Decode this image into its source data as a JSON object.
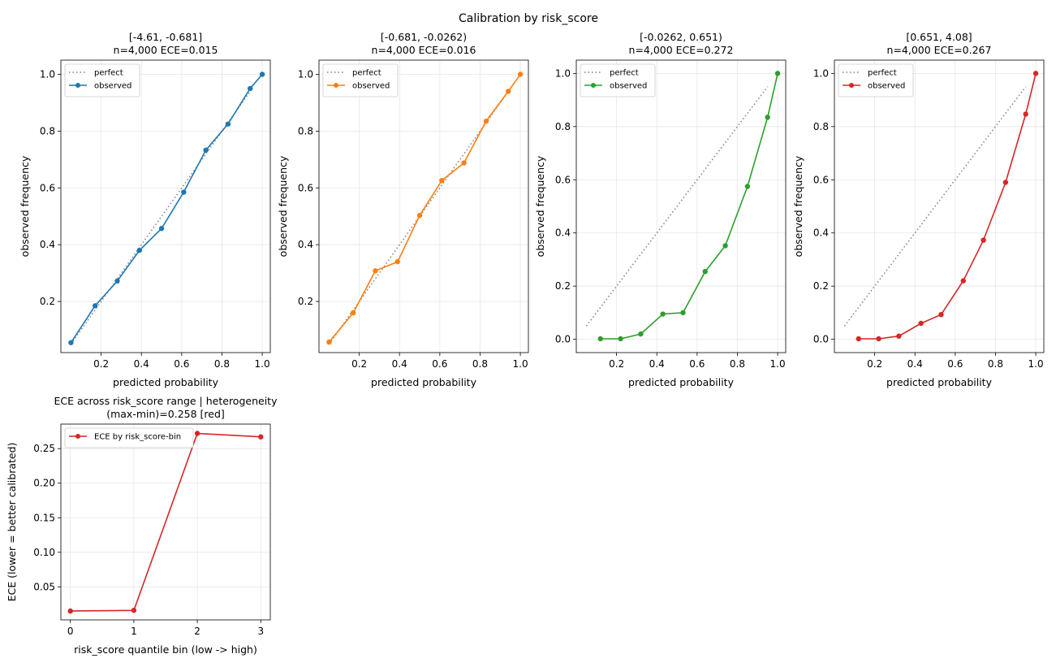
{
  "figure": {
    "title": "Calibration by risk_score"
  },
  "chart_data": [
    {
      "type": "line",
      "title": "[-4.61, -0.681]",
      "subtitle": "n=4,000  ECE=0.015",
      "xlabel": "predicted probability",
      "ylabel": "observed frequency",
      "xlim": [
        0.0,
        1.04
      ],
      "ylim": [
        0.02,
        1.05
      ],
      "xticks": [
        0.2,
        0.4,
        0.6,
        0.8,
        1.0
      ],
      "xtick_labels": [
        "0.2",
        "0.4",
        "0.6",
        "0.8",
        "1.0"
      ],
      "yticks": [
        0.2,
        0.4,
        0.6,
        0.8,
        1.0
      ],
      "ytick_labels": [
        "0.2",
        "0.4",
        "0.6",
        "0.8",
        "1.0"
      ],
      "grid": true,
      "legend_position": "top-left",
      "legend": [
        "perfect",
        "observed"
      ],
      "series": [
        {
          "name": "perfect",
          "style": "dotted",
          "color": "#808080",
          "x": [
            0.05,
            0.95
          ],
          "y": [
            0.05,
            0.95
          ]
        },
        {
          "name": "observed",
          "style": "solid-markers",
          "color": "#1f77b4",
          "x": [
            0.05,
            0.17,
            0.28,
            0.39,
            0.5,
            0.61,
            0.72,
            0.83,
            0.94,
            1.0
          ],
          "y": [
            0.055,
            0.185,
            0.272,
            0.38,
            0.457,
            0.585,
            0.733,
            0.825,
            0.95,
            1.0
          ]
        }
      ]
    },
    {
      "type": "line",
      "title": "[-0.681, -0.0262)",
      "subtitle": "n=4,000  ECE=0.016",
      "xlabel": "predicted probability",
      "ylabel": "observed frequency",
      "xlim": [
        0.0,
        1.04
      ],
      "ylim": [
        0.02,
        1.05
      ],
      "xticks": [
        0.2,
        0.4,
        0.6,
        0.8,
        1.0
      ],
      "xtick_labels": [
        "0.2",
        "0.4",
        "0.6",
        "0.8",
        "1.0"
      ],
      "yticks": [
        0.2,
        0.4,
        0.6,
        0.8,
        1.0
      ],
      "ytick_labels": [
        "0.2",
        "0.4",
        "0.6",
        "0.8",
        "1.0"
      ],
      "grid": true,
      "legend_position": "top-left",
      "legend": [
        "perfect",
        "observed"
      ],
      "series": [
        {
          "name": "perfect",
          "style": "dotted",
          "color": "#808080",
          "x": [
            0.05,
            0.95
          ],
          "y": [
            0.05,
            0.95
          ]
        },
        {
          "name": "observed",
          "style": "solid-markers",
          "color": "#ff7f0e",
          "x": [
            0.05,
            0.17,
            0.28,
            0.39,
            0.5,
            0.61,
            0.72,
            0.83,
            0.94,
            1.0
          ],
          "y": [
            0.057,
            0.16,
            0.308,
            0.34,
            0.503,
            0.626,
            0.688,
            0.835,
            0.94,
            1.0
          ]
        }
      ]
    },
    {
      "type": "line",
      "title": "[-0.0262, 0.651)",
      "subtitle": "n=4,000  ECE=0.272",
      "xlabel": "predicted probability",
      "ylabel": "observed frequency",
      "xlim": [
        0.0,
        1.04
      ],
      "ylim": [
        -0.05,
        1.05
      ],
      "xticks": [
        0.2,
        0.4,
        0.6,
        0.8,
        1.0
      ],
      "xtick_labels": [
        "0.2",
        "0.4",
        "0.6",
        "0.8",
        "1.0"
      ],
      "yticks": [
        0.0,
        0.2,
        0.4,
        0.6,
        0.8,
        1.0
      ],
      "ytick_labels": [
        "0.0",
        "0.2",
        "0.4",
        "0.6",
        "0.8",
        "1.0"
      ],
      "grid": true,
      "legend_position": "top-left",
      "legend": [
        "perfect",
        "observed"
      ],
      "series": [
        {
          "name": "perfect",
          "style": "dotted",
          "color": "#808080",
          "x": [
            0.05,
            0.95
          ],
          "y": [
            0.05,
            0.95
          ]
        },
        {
          "name": "observed",
          "style": "solid-markers",
          "color": "#2ca02c",
          "x": [
            0.12,
            0.22,
            0.32,
            0.43,
            0.53,
            0.64,
            0.74,
            0.85,
            0.95,
            1.0
          ],
          "y": [
            0.002,
            0.002,
            0.02,
            0.095,
            0.1,
            0.255,
            0.352,
            0.575,
            0.835,
            1.0
          ]
        }
      ]
    },
    {
      "type": "line",
      "title": "[0.651, 4.08]",
      "subtitle": "n=4,000  ECE=0.267",
      "xlabel": "predicted probability",
      "ylabel": "observed frequency",
      "xlim": [
        0.0,
        1.04
      ],
      "ylim": [
        -0.05,
        1.05
      ],
      "xticks": [
        0.2,
        0.4,
        0.6,
        0.8,
        1.0
      ],
      "xtick_labels": [
        "0.2",
        "0.4",
        "0.6",
        "0.8",
        "1.0"
      ],
      "yticks": [
        0.0,
        0.2,
        0.4,
        0.6,
        0.8,
        1.0
      ],
      "ytick_labels": [
        "0.0",
        "0.2",
        "0.4",
        "0.6",
        "0.8",
        "1.0"
      ],
      "grid": true,
      "legend_position": "top-left",
      "legend": [
        "perfect",
        "observed"
      ],
      "series": [
        {
          "name": "perfect",
          "style": "dotted",
          "color": "#808080",
          "x": [
            0.05,
            0.95
          ],
          "y": [
            0.05,
            0.95
          ]
        },
        {
          "name": "observed",
          "style": "solid-markers",
          "color": "#d62728",
          "x": [
            0.12,
            0.22,
            0.32,
            0.43,
            0.53,
            0.64,
            0.74,
            0.85,
            0.95,
            1.0
          ],
          "y": [
            0.002,
            0.002,
            0.012,
            0.06,
            0.093,
            0.22,
            0.373,
            0.59,
            0.847,
            1.0
          ]
        }
      ]
    },
    {
      "type": "line",
      "title": "ECE across risk_score range  |  heterogeneity",
      "subtitle": "(max-min)=0.258  [red]",
      "xlabel": "risk_score quantile bin (low -> high)",
      "ylabel": "ECE (lower = better calibrated)",
      "xlim": [
        -0.15,
        3.15
      ],
      "ylim": [
        0.0022,
        0.2855
      ],
      "xticks": [
        0,
        1,
        2,
        3
      ],
      "xtick_labels": [
        "0",
        "1",
        "2",
        "3"
      ],
      "yticks": [
        0.05,
        0.1,
        0.15,
        0.2,
        0.25
      ],
      "ytick_labels": [
        "0.05",
        "0.10",
        "0.15",
        "0.20",
        "0.25"
      ],
      "grid": true,
      "legend_position": "top-left",
      "legend": [
        "ECE by risk_score-bin"
      ],
      "series": [
        {
          "name": "ECE by risk_score-bin",
          "style": "solid-markers",
          "color": "#d62728",
          "x": [
            0,
            1,
            2,
            3
          ],
          "y": [
            0.015,
            0.016,
            0.272,
            0.267
          ]
        }
      ]
    }
  ]
}
